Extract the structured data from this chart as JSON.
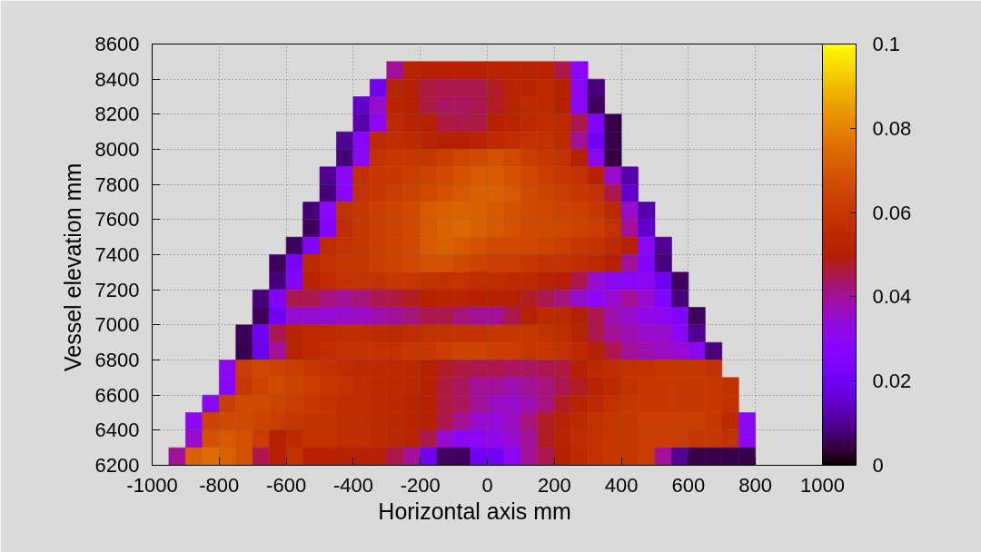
{
  "chart_data": {
    "type": "heatmap",
    "xlabel": "Horizontal axis     mm",
    "ylabel": "Vessel elevation     mm",
    "xlim": [
      -1000,
      1000
    ],
    "ylim": [
      6200,
      8600
    ],
    "xticks": [
      -1000,
      -800,
      -600,
      -400,
      -200,
      0,
      200,
      400,
      600,
      800,
      1000
    ],
    "yticks": [
      6200,
      6400,
      6600,
      6800,
      7000,
      7200,
      7400,
      7600,
      7800,
      8000,
      8200,
      8400,
      8600
    ],
    "clim": [
      0,
      0.1
    ],
    "cticks": [
      0,
      0.02,
      0.04,
      0.06,
      0.08,
      0.1
    ],
    "grid": true,
    "x": [
      -975,
      -925,
      -875,
      -825,
      -775,
      -725,
      -675,
      -625,
      -575,
      -525,
      -475,
      -425,
      -375,
      -325,
      -275,
      -225,
      -175,
      -125,
      -75,
      -25,
      25,
      75,
      125,
      175,
      225,
      275,
      325,
      375,
      425,
      475,
      525,
      575,
      625,
      675,
      725,
      775,
      825,
      875,
      925,
      975
    ],
    "y": [
      8450,
      8350,
      8250,
      8150,
      8050,
      7950,
      7850,
      7750,
      7650,
      7550,
      7450,
      7350,
      7250,
      7150,
      7050,
      6950,
      6850,
      6750,
      6650,
      6550,
      6450,
      6350,
      6250
    ],
    "cells": [
      [
        null,
        null,
        null,
        null,
        null,
        null,
        null,
        null,
        null,
        null,
        null,
        null,
        null,
        null,
        0.04,
        0.052,
        0.05,
        0.05,
        0.05,
        0.05,
        0.052,
        0.052,
        0.052,
        0.052,
        0.045,
        0.028,
        null,
        null,
        null,
        null,
        null,
        null,
        null,
        null,
        null,
        null,
        null,
        null,
        null,
        null
      ],
      [
        null,
        null,
        null,
        null,
        null,
        null,
        null,
        null,
        null,
        null,
        null,
        null,
        null,
        0.02,
        0.052,
        0.05,
        0.046,
        0.045,
        0.045,
        0.045,
        0.048,
        0.052,
        0.052,
        0.055,
        0.05,
        0.03,
        0.008,
        null,
        null,
        null,
        null,
        null,
        null,
        null,
        null,
        null,
        null,
        null,
        null,
        null
      ],
      [
        null,
        null,
        null,
        null,
        null,
        null,
        null,
        null,
        null,
        null,
        null,
        null,
        0.015,
        0.035,
        0.052,
        0.05,
        0.046,
        0.044,
        0.044,
        0.045,
        0.048,
        0.052,
        0.055,
        0.055,
        0.05,
        0.028,
        0.006,
        null,
        null,
        null,
        null,
        null,
        null,
        null,
        null,
        null,
        null,
        null,
        null,
        null
      ],
      [
        null,
        null,
        null,
        null,
        null,
        null,
        null,
        null,
        null,
        null,
        null,
        null,
        0.012,
        0.03,
        0.055,
        0.052,
        0.05,
        0.046,
        0.045,
        0.046,
        0.05,
        0.053,
        0.055,
        0.056,
        0.055,
        0.045,
        0.025,
        0.005,
        null,
        null,
        null,
        null,
        null,
        null,
        null,
        null,
        null,
        null,
        null,
        null
      ],
      [
        null,
        null,
        null,
        null,
        null,
        null,
        null,
        null,
        null,
        null,
        null,
        0.01,
        0.028,
        0.055,
        0.056,
        0.055,
        0.052,
        0.05,
        0.05,
        0.052,
        0.055,
        0.056,
        0.058,
        0.058,
        0.055,
        0.04,
        0.02,
        0.005,
        null,
        null,
        null,
        null,
        null,
        null,
        null,
        null,
        null,
        null,
        null,
        null
      ],
      [
        null,
        null,
        null,
        null,
        null,
        null,
        null,
        null,
        null,
        null,
        null,
        0.008,
        0.03,
        0.058,
        0.06,
        0.06,
        0.06,
        0.062,
        0.065,
        0.066,
        0.068,
        0.066,
        0.062,
        0.06,
        0.058,
        0.05,
        0.03,
        0.004,
        null,
        null,
        null,
        null,
        null,
        null,
        null,
        null,
        null,
        null,
        null,
        null
      ],
      [
        null,
        null,
        null,
        null,
        null,
        null,
        null,
        null,
        null,
        null,
        0.01,
        0.03,
        0.058,
        0.06,
        0.06,
        0.062,
        0.064,
        0.066,
        0.068,
        0.07,
        0.07,
        0.068,
        0.065,
        0.062,
        0.06,
        0.058,
        0.05,
        0.035,
        0.012,
        null,
        null,
        null,
        null,
        null,
        null,
        null,
        null,
        null,
        null,
        null
      ],
      [
        null,
        null,
        null,
        null,
        null,
        null,
        null,
        null,
        null,
        null,
        0.008,
        0.028,
        0.058,
        0.06,
        0.062,
        0.064,
        0.066,
        0.068,
        0.07,
        0.072,
        0.072,
        0.07,
        0.066,
        0.064,
        0.062,
        0.06,
        0.058,
        0.045,
        0.015,
        null,
        null,
        null,
        null,
        null,
        null,
        null,
        null,
        null,
        null,
        null
      ],
      [
        null,
        null,
        null,
        null,
        null,
        null,
        null,
        null,
        null,
        0.008,
        0.028,
        0.058,
        0.06,
        0.062,
        0.064,
        0.066,
        0.07,
        0.072,
        0.073,
        0.072,
        0.07,
        0.068,
        0.066,
        0.065,
        0.064,
        0.063,
        0.06,
        0.055,
        0.035,
        0.012,
        null,
        null,
        null,
        null,
        null,
        null,
        null,
        null,
        null,
        null
      ],
      [
        null,
        null,
        null,
        null,
        null,
        null,
        null,
        null,
        null,
        0.006,
        0.025,
        0.056,
        0.06,
        0.062,
        0.064,
        0.066,
        0.07,
        0.073,
        0.074,
        0.072,
        0.07,
        0.068,
        0.066,
        0.066,
        0.065,
        0.064,
        0.062,
        0.058,
        0.04,
        0.015,
        null,
        null,
        null,
        null,
        null,
        null,
        null,
        null,
        null,
        null
      ],
      [
        null,
        null,
        null,
        null,
        null,
        null,
        null,
        null,
        0.006,
        0.025,
        0.056,
        0.058,
        0.06,
        0.062,
        0.064,
        0.066,
        0.07,
        0.072,
        0.07,
        0.068,
        0.066,
        0.066,
        0.065,
        0.064,
        0.062,
        0.06,
        0.058,
        0.055,
        0.05,
        0.03,
        0.01,
        null,
        null,
        null,
        null,
        null,
        null,
        null,
        null,
        null
      ],
      [
        null,
        null,
        null,
        null,
        null,
        null,
        null,
        0.006,
        0.022,
        0.055,
        0.058,
        0.06,
        0.06,
        0.062,
        0.064,
        0.066,
        0.068,
        0.068,
        0.066,
        0.064,
        0.062,
        0.062,
        0.06,
        0.058,
        0.058,
        0.056,
        0.055,
        0.05,
        0.04,
        0.025,
        0.008,
        null,
        null,
        null,
        null,
        null,
        null,
        null,
        null,
        null
      ],
      [
        null,
        null,
        null,
        null,
        null,
        null,
        null,
        0.008,
        0.025,
        0.052,
        0.056,
        0.058,
        0.058,
        0.058,
        0.06,
        0.06,
        0.058,
        0.058,
        0.058,
        0.056,
        0.056,
        0.055,
        0.055,
        0.052,
        0.05,
        0.045,
        0.035,
        0.03,
        0.028,
        0.03,
        0.02,
        0.006,
        null,
        null,
        null,
        null,
        null,
        null,
        null,
        null
      ],
      [
        null,
        null,
        null,
        null,
        null,
        null,
        0.008,
        0.025,
        0.045,
        0.045,
        0.042,
        0.04,
        0.042,
        0.045,
        0.046,
        0.048,
        0.05,
        0.052,
        0.052,
        0.05,
        0.05,
        0.05,
        0.048,
        0.045,
        0.042,
        0.035,
        0.03,
        0.035,
        0.04,
        0.035,
        0.025,
        0.008,
        null,
        null,
        null,
        null,
        null,
        null,
        null,
        null
      ],
      [
        null,
        null,
        null,
        null,
        null,
        null,
        0.006,
        0.02,
        0.035,
        0.035,
        0.034,
        0.035,
        0.036,
        0.038,
        0.04,
        0.042,
        0.045,
        0.045,
        0.042,
        0.04,
        0.04,
        0.045,
        0.05,
        0.055,
        0.055,
        0.05,
        0.045,
        0.038,
        0.035,
        0.032,
        0.03,
        0.025,
        0.006,
        null,
        null,
        null,
        null,
        null,
        null,
        null
      ],
      [
        null,
        null,
        null,
        null,
        null,
        0.006,
        0.02,
        0.045,
        0.052,
        0.055,
        0.055,
        0.056,
        0.056,
        0.055,
        0.055,
        0.056,
        0.058,
        0.058,
        0.058,
        0.058,
        0.06,
        0.06,
        0.06,
        0.058,
        0.056,
        0.052,
        0.045,
        0.04,
        0.038,
        0.035,
        0.035,
        0.03,
        0.01,
        null,
        null,
        null,
        null,
        null,
        null,
        null
      ],
      [
        null,
        null,
        null,
        null,
        null,
        0.005,
        0.018,
        0.04,
        0.052,
        0.055,
        0.056,
        0.058,
        0.058,
        0.058,
        0.058,
        0.06,
        0.06,
        0.062,
        0.064,
        0.064,
        0.062,
        0.062,
        0.06,
        0.06,
        0.058,
        0.055,
        0.05,
        0.045,
        0.04,
        0.038,
        0.036,
        0.034,
        0.03,
        0.008,
        null,
        null,
        null,
        null,
        null,
        null
      ],
      [
        null,
        null,
        null,
        null,
        0.03,
        0.062,
        0.065,
        0.064,
        0.062,
        0.06,
        0.058,
        0.056,
        0.055,
        0.055,
        0.055,
        0.054,
        0.05,
        0.048,
        0.046,
        0.045,
        0.045,
        0.044,
        0.044,
        0.045,
        0.046,
        0.05,
        0.054,
        0.056,
        0.058,
        0.058,
        0.06,
        0.06,
        0.06,
        0.058,
        null,
        null,
        null,
        null,
        null,
        null
      ],
      [
        null,
        null,
        null,
        null,
        0.028,
        0.06,
        0.064,
        0.066,
        0.064,
        0.062,
        0.06,
        0.058,
        0.056,
        0.055,
        0.055,
        0.054,
        0.05,
        0.046,
        0.044,
        0.04,
        0.04,
        0.038,
        0.04,
        0.042,
        0.045,
        0.048,
        0.052,
        0.055,
        0.058,
        0.06,
        0.06,
        0.06,
        0.06,
        0.06,
        0.058,
        null,
        null,
        null,
        null,
        null
      ],
      [
        null,
        null,
        null,
        0.03,
        0.062,
        0.066,
        0.066,
        0.064,
        0.062,
        0.06,
        0.058,
        0.056,
        0.056,
        0.055,
        0.054,
        0.052,
        0.05,
        0.046,
        0.044,
        0.04,
        0.036,
        0.035,
        0.038,
        0.042,
        0.048,
        0.052,
        0.055,
        0.058,
        0.06,
        0.06,
        0.06,
        0.06,
        0.06,
        0.06,
        0.058,
        null,
        null,
        null,
        null,
        null
      ],
      [
        null,
        null,
        0.03,
        0.064,
        0.066,
        0.066,
        0.064,
        0.062,
        0.06,
        0.058,
        0.058,
        0.056,
        0.056,
        0.055,
        0.054,
        0.052,
        0.05,
        0.045,
        0.04,
        0.035,
        0.034,
        0.036,
        0.042,
        0.048,
        0.052,
        0.055,
        0.058,
        0.06,
        0.06,
        0.062,
        0.062,
        0.062,
        0.062,
        0.06,
        0.055,
        0.03,
        null,
        null,
        null,
        null
      ],
      [
        null,
        null,
        0.035,
        0.068,
        0.07,
        0.068,
        0.062,
        0.05,
        0.055,
        0.058,
        0.058,
        0.056,
        0.056,
        0.055,
        0.054,
        0.052,
        0.045,
        0.035,
        0.03,
        0.03,
        0.032,
        0.035,
        0.04,
        0.048,
        0.052,
        0.056,
        0.058,
        0.06,
        0.06,
        0.062,
        0.062,
        0.062,
        0.06,
        0.06,
        0.058,
        0.03,
        null,
        null,
        null,
        null
      ],
      [
        null,
        0.04,
        0.072,
        0.075,
        0.072,
        0.068,
        0.045,
        0.05,
        0.058,
        0.05,
        0.05,
        0.05,
        0.05,
        0.05,
        0.045,
        0.04,
        0.02,
        0.006,
        0.006,
        0.02,
        0.02,
        0.03,
        0.04,
        0.045,
        0.05,
        0.055,
        0.058,
        0.06,
        0.06,
        0.062,
        0.04,
        0.01,
        0.005,
        0.005,
        0.005,
        0.005,
        null,
        null,
        null,
        null
      ]
    ]
  }
}
